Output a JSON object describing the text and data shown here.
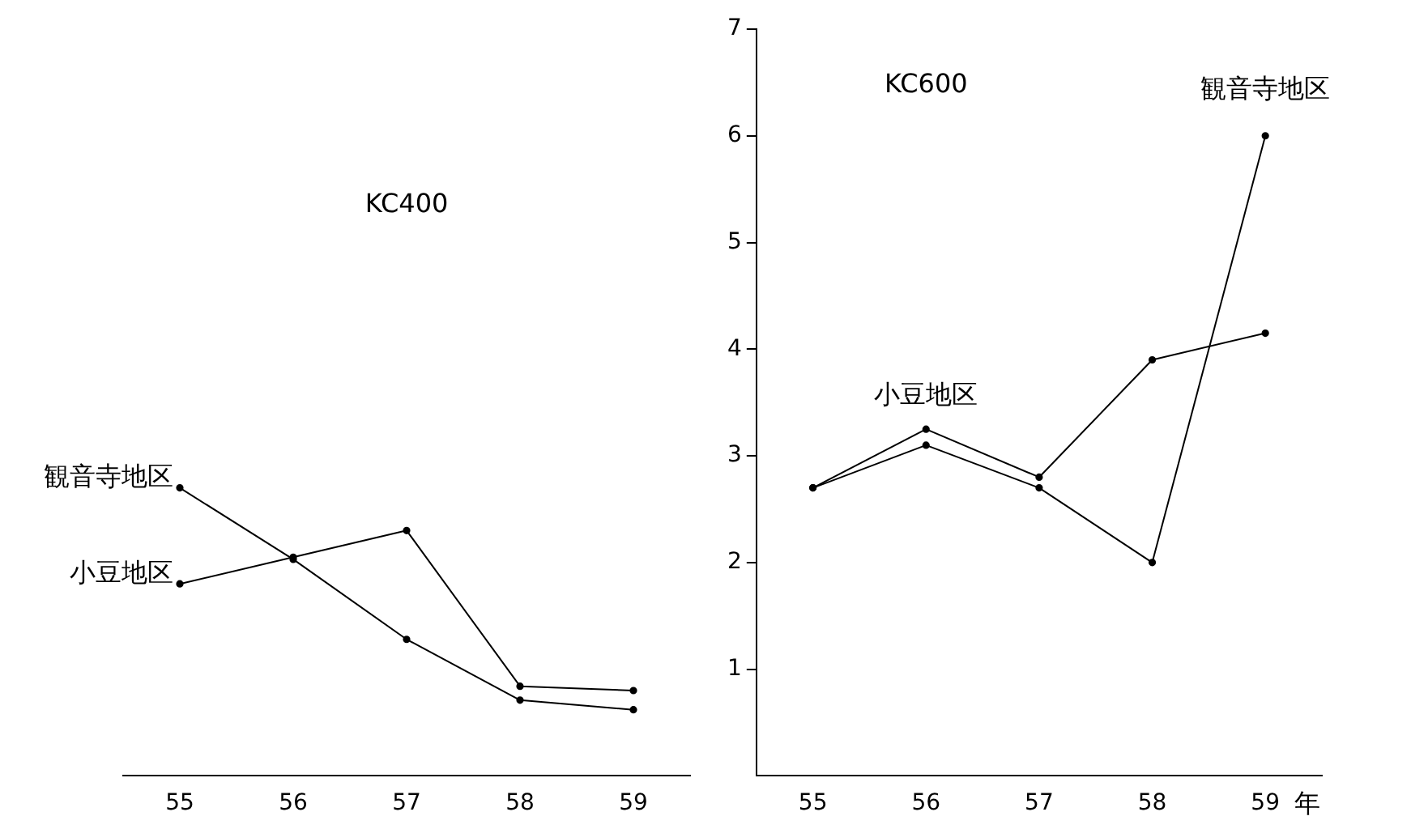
{
  "chart_data": [
    {
      "type": "line",
      "title": "KC400",
      "categories": [
        "55",
        "56",
        "57",
        "58",
        "59"
      ],
      "ylim": [
        0,
        7
      ],
      "yticks": [
        1,
        2,
        3,
        4,
        5,
        6,
        7
      ],
      "tick_labels": "x",
      "marker": "circle",
      "line_style": "solid",
      "grid": false,
      "legend": false,
      "series": [
        {
          "name": "観音寺地区",
          "color": "#000000",
          "values": [
            2.7,
            2.03,
            1.28,
            0.71,
            0.62
          ]
        },
        {
          "name": "小豆地区",
          "color": "#000000",
          "values": [
            1.8,
            2.05,
            2.3,
            0.84,
            0.8
          ]
        }
      ]
    },
    {
      "type": "line",
      "title": "KC600",
      "xlabel": "年",
      "categories": [
        "55",
        "56",
        "57",
        "58",
        "59"
      ],
      "ylim": [
        0,
        7
      ],
      "yticks": [
        1,
        2,
        3,
        4,
        5,
        6,
        7
      ],
      "marker": "circle",
      "line_style": "solid",
      "grid": false,
      "legend": false,
      "series": [
        {
          "name": "観音寺地区",
          "color": "#000000",
          "values": [
            2.7,
            3.1,
            2.7,
            2.0,
            6.0
          ]
        },
        {
          "name": "小豆地区",
          "color": "#000000",
          "values": [
            2.7,
            3.25,
            2.8,
            3.9,
            4.15
          ]
        }
      ]
    }
  ]
}
